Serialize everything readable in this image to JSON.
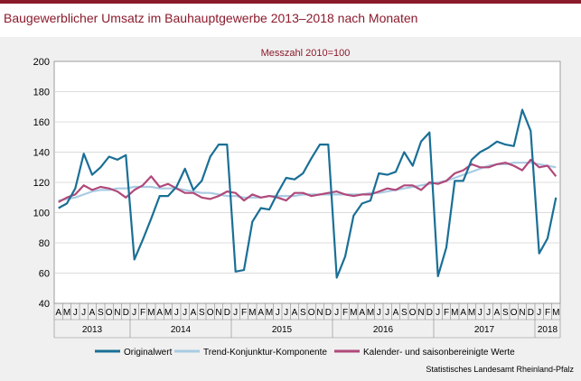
{
  "header": {
    "title": "Baugewerblicher Umsatz im Bauhauptgewerbe 2013–2018 nach Monaten",
    "source": "Statistisches Landesamt Rheinland-Pfalz"
  },
  "colors": {
    "brand": "#8b1a2b",
    "original": "#1a6f96",
    "trend": "#a9cbe3",
    "adjusted": "#b0497a"
  },
  "chart_data": {
    "type": "line",
    "subtitle": "Messzahl 2010=100",
    "ylim": [
      40,
      200
    ],
    "yticks": [
      40,
      60,
      80,
      100,
      120,
      140,
      160,
      180,
      200
    ],
    "grid": true,
    "legend_position": "bottom",
    "x_month_labels": [
      "A",
      "M",
      "J",
      "J",
      "A",
      "S",
      "O",
      "N",
      "D",
      "J",
      "F",
      "M",
      "A",
      "M",
      "J",
      "J",
      "A",
      "S",
      "O",
      "N",
      "D",
      "J",
      "F",
      "M",
      "A",
      "M",
      "J",
      "J",
      "A",
      "S",
      "O",
      "N",
      "D",
      "J",
      "F",
      "M",
      "A",
      "M",
      "J",
      "J",
      "A",
      "S",
      "O",
      "N",
      "D",
      "J",
      "F",
      "M",
      "A",
      "M",
      "J",
      "J",
      "A",
      "S",
      "O",
      "N",
      "D",
      "J",
      "F",
      "M"
    ],
    "x_year_groups": [
      {
        "label": "2013",
        "months": 9
      },
      {
        "label": "2014",
        "months": 12
      },
      {
        "label": "2015",
        "months": 12
      },
      {
        "label": "2016",
        "months": 12
      },
      {
        "label": "2017",
        "months": 12
      },
      {
        "label": "2018",
        "months": 3
      }
    ],
    "series": [
      {
        "name": "Originalwert",
        "color": "#1a6f96",
        "values": [
          103,
          106,
          116,
          139,
          125,
          130,
          137,
          135,
          138,
          69,
          82,
          96,
          111,
          111,
          117,
          129,
          115,
          121,
          137,
          145,
          145,
          61,
          62,
          94,
          103,
          102,
          113,
          123,
          122,
          126,
          136,
          145,
          145,
          57,
          71,
          98,
          106,
          108,
          126,
          125,
          127,
          140,
          131,
          147,
          153,
          58,
          77,
          121,
          121,
          135,
          140,
          143,
          147,
          145,
          144,
          168,
          154,
          73,
          83,
          110
        ]
      },
      {
        "name": "Trend-Konjunktur-Komponente",
        "color": "#a9cbe3",
        "values": [
          108,
          109,
          110,
          112,
          114,
          115,
          115,
          116,
          116,
          117,
          117,
          117,
          116,
          116,
          116,
          115,
          114,
          113,
          113,
          112,
          111,
          111,
          110,
          110,
          110,
          111,
          111,
          111,
          111,
          112,
          112,
          112,
          112,
          112,
          112,
          112,
          112,
          113,
          113,
          114,
          115,
          116,
          117,
          118,
          119,
          120,
          121,
          123,
          125,
          127,
          129,
          131,
          132,
          132,
          133,
          133,
          133,
          132,
          131,
          130
        ]
      },
      {
        "name": "Kalender- und saisonbereinigte Werte",
        "color": "#b0497a",
        "values": [
          107,
          110,
          112,
          118,
          115,
          117,
          116,
          114,
          110,
          115,
          118,
          124,
          117,
          119,
          116,
          113,
          113,
          110,
          109,
          111,
          114,
          113,
          108,
          112,
          110,
          111,
          110,
          108,
          113,
          113,
          111,
          112,
          113,
          114,
          112,
          111,
          112,
          112,
          114,
          116,
          115,
          118,
          118,
          115,
          120,
          119,
          121,
          126,
          128,
          132,
          130,
          130,
          132,
          133,
          131,
          128,
          135,
          130,
          131,
          124
        ]
      }
    ]
  }
}
